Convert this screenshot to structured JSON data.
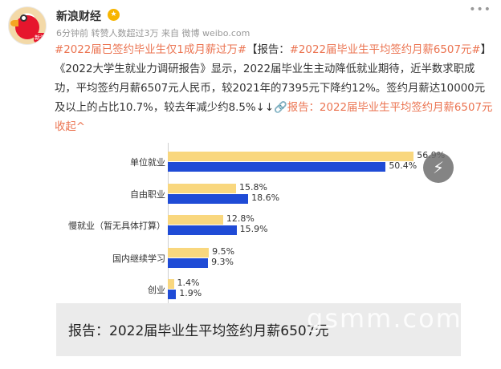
{
  "header": {
    "username": "新浪财经",
    "vip_badge": "★",
    "meta": "6分钟前 转赞人数超过3万 来自 微博 weibo.com",
    "more": "•••",
    "avatar_badge": "新浪"
  },
  "post": {
    "hashtag1": "#2022届已签约毕业生仅1成月薪过万#",
    "bracket_open": "【报告：",
    "hashtag2": "#2022届毕业生平均签约月薪6507元#",
    "bracket_close": "】",
    "body": "《2022大学生就业力调研报告》显示，2022届毕业生主动降低就业期待，近半数求职成功，平均签约月薪6507元人民币，较2021年的7395元下降约12%。签约月薪达10000元及以上的占比10.7%，较去年减少约8.5%↓↓",
    "link_text": "🔗报告：2022届毕业生平均签约月薪6507元",
    "collapse": "收起^"
  },
  "chart_data": {
    "type": "bar",
    "orientation": "horizontal",
    "categories": [
      "单位就业",
      "自由职业",
      "慢就业（暂无具体打算）",
      "国内继续学习",
      "创业"
    ],
    "series": [
      {
        "values": [
          56.9,
          15.8,
          12.8,
          9.5,
          1.4
        ],
        "color": "#f9d77e"
      },
      {
        "values": [
          50.4,
          18.6,
          15.9,
          9.3,
          1.9
        ],
        "color": "#1f4bd6"
      }
    ],
    "value_labels": [
      [
        "56.9%",
        "50.4%"
      ],
      [
        "15.8%",
        "18.6%"
      ],
      [
        "12.8%",
        "15.9%"
      ],
      [
        "9.5%",
        "9.3%"
      ],
      [
        "1.4%",
        "1.9%"
      ]
    ],
    "xlim": [
      0,
      60
    ],
    "legend": "none"
  },
  "caption": "报告：2022届毕业生平均签约月薪6507元",
  "watermark": "gsmm.com",
  "float_icon": "⚡"
}
